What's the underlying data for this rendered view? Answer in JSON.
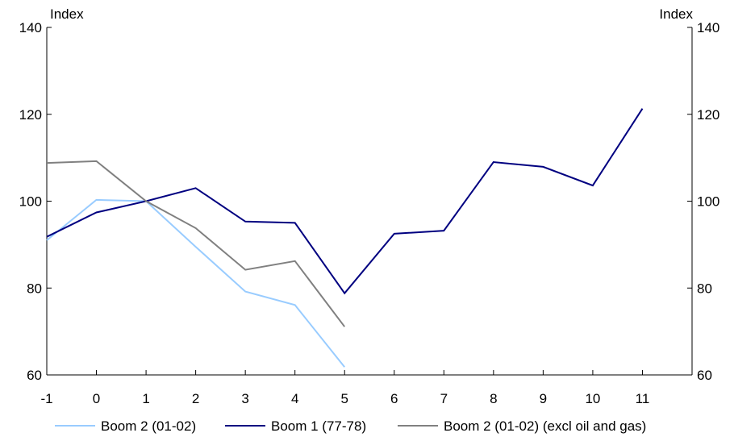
{
  "chart_data": {
    "type": "line",
    "units": {
      "left": "Index",
      "right": "Index"
    },
    "x": [
      -1,
      0,
      1,
      2,
      3,
      4,
      5,
      6,
      7,
      8,
      9,
      10,
      11
    ],
    "x_tick_labels": [
      "-1",
      "0",
      "1",
      "2",
      "3",
      "4",
      "5",
      "6",
      "7",
      "8",
      "9",
      "10",
      "11"
    ],
    "xlim": [
      -1,
      12
    ],
    "ylim": [
      60,
      140
    ],
    "y_ticks": [
      60,
      80,
      100,
      120,
      140
    ],
    "y_tick_labels": [
      "60",
      "80",
      "100",
      "120",
      "140"
    ],
    "grid": false,
    "legend_position": "bottom",
    "series": [
      {
        "name": "Boom 2 (01-02)",
        "color": "#99ccff",
        "x": [
          -1,
          0,
          1,
          2,
          3,
          4,
          5
        ],
        "values": [
          91,
          100.3,
          100,
          89.5,
          79.2,
          76.1,
          61.8
        ]
      },
      {
        "name": "Boom 1 (77-78)",
        "color": "#000080",
        "x": [
          -1,
          0,
          1,
          2,
          3,
          4,
          5,
          6,
          7,
          8,
          9,
          10,
          11
        ],
        "values": [
          91.8,
          97.4,
          100,
          103,
          95.3,
          95,
          78.8,
          92.5,
          93.2,
          109,
          107.9,
          103.6,
          121.3
        ]
      },
      {
        "name": "Boom 2 (01-02) (excl oil and gas)",
        "color": "#808080",
        "x": [
          -1,
          0,
          1,
          2,
          3,
          4,
          5
        ],
        "values": [
          108.8,
          109.2,
          100,
          93.8,
          84.2,
          86.2,
          71.1
        ]
      }
    ]
  }
}
